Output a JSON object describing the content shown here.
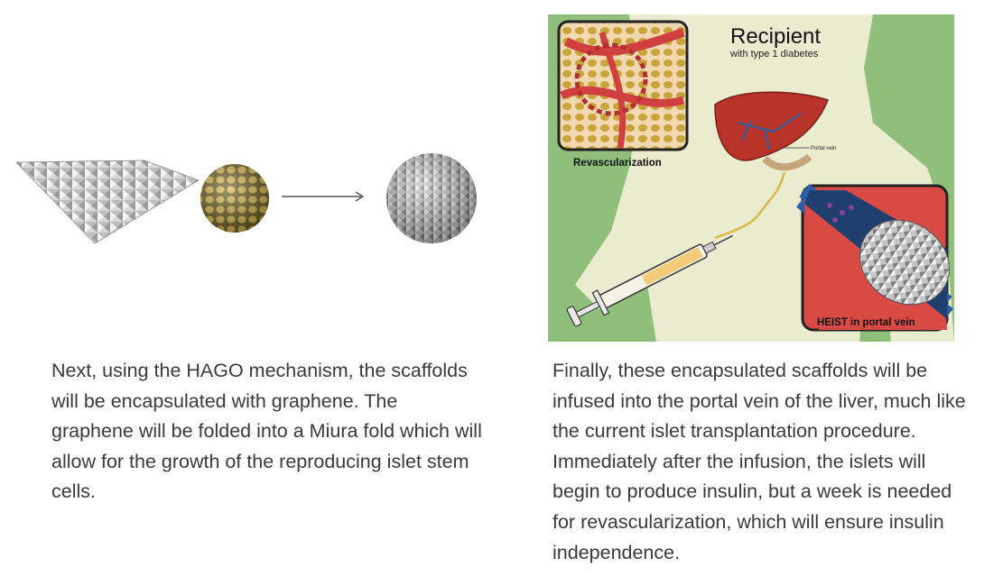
{
  "left_panel": {
    "caption": "Next, using the HAGO mechanism, the scaffolds will be encapsulated with graphene. The graphene will be folded into a Miura fold which will allow for the growth of the reproducing islet stem cells."
  },
  "right_panel": {
    "figure": {
      "title": "Recipient",
      "subtitle": "with type 1 diabetes",
      "label_revascularization": "Revascularization",
      "label_portal_vein": "Portal vein",
      "label_heist": "HEIST in portal vein"
    },
    "caption": "Finally, these encapsulated scaffolds will be infused into the portal vein of the liver, much like the current islet transplantation procedure. Immediately after the infusion, the islets will begin to produce insulin, but a week is needed for revascularization, which will ensure insulin independence."
  },
  "colors": {
    "background_green": "#8fbf7a",
    "body_silhouette": "#e9eccf",
    "liver": "#b8342a",
    "blood_vessel_red": "#d04040",
    "scaffold_gold": "#c9a43a"
  }
}
